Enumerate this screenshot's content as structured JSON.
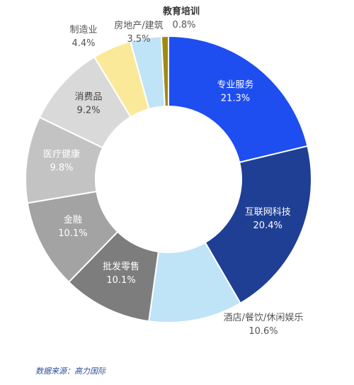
{
  "chart_data": {
    "type": "donut",
    "slices": [
      {
        "name": "专业服务",
        "value": 21.3,
        "label": "21.3%",
        "color": "#1e4ef0",
        "text_color": "#ffffff"
      },
      {
        "name": "互联网科技",
        "value": 20.4,
        "label": "20.4%",
        "color": "#1f3f94",
        "text_color": "#ffffff"
      },
      {
        "name": "酒店/餐饮/休闲娱乐",
        "value": 10.6,
        "label": "10.6%",
        "color": "#bfe3f7",
        "text_color": "#444444"
      },
      {
        "name": "批发零售",
        "value": 10.1,
        "label": "10.1%",
        "color": "#7d7d7d",
        "text_color": "#ffffff"
      },
      {
        "name": "金融",
        "value": 10.1,
        "label": "10.1%",
        "color": "#a3a3a3",
        "text_color": "#ffffff"
      },
      {
        "name": "医疗健康",
        "value": 9.8,
        "label": "9.8%",
        "color": "#c3c3c3",
        "text_color": "#ffffff"
      },
      {
        "name": "消费品",
        "value": 9.2,
        "label": "9.2%",
        "color": "#d9d9d9",
        "text_color": "#444444"
      },
      {
        "name": "制造业",
        "value": 4.4,
        "label": "4.4%",
        "color": "#fbe99a",
        "text_color": "#666666"
      },
      {
        "name": "房地产/建筑",
        "value": 3.5,
        "label": "3.5%",
        "color": "#bfe3f7",
        "text_color": "#444444"
      },
      {
        "name": "教育培训",
        "value": 0.8,
        "label": "0.8%",
        "color": "#a08a12",
        "text_color": "#444444"
      }
    ]
  },
  "source_note": "数据来源：高力国际"
}
